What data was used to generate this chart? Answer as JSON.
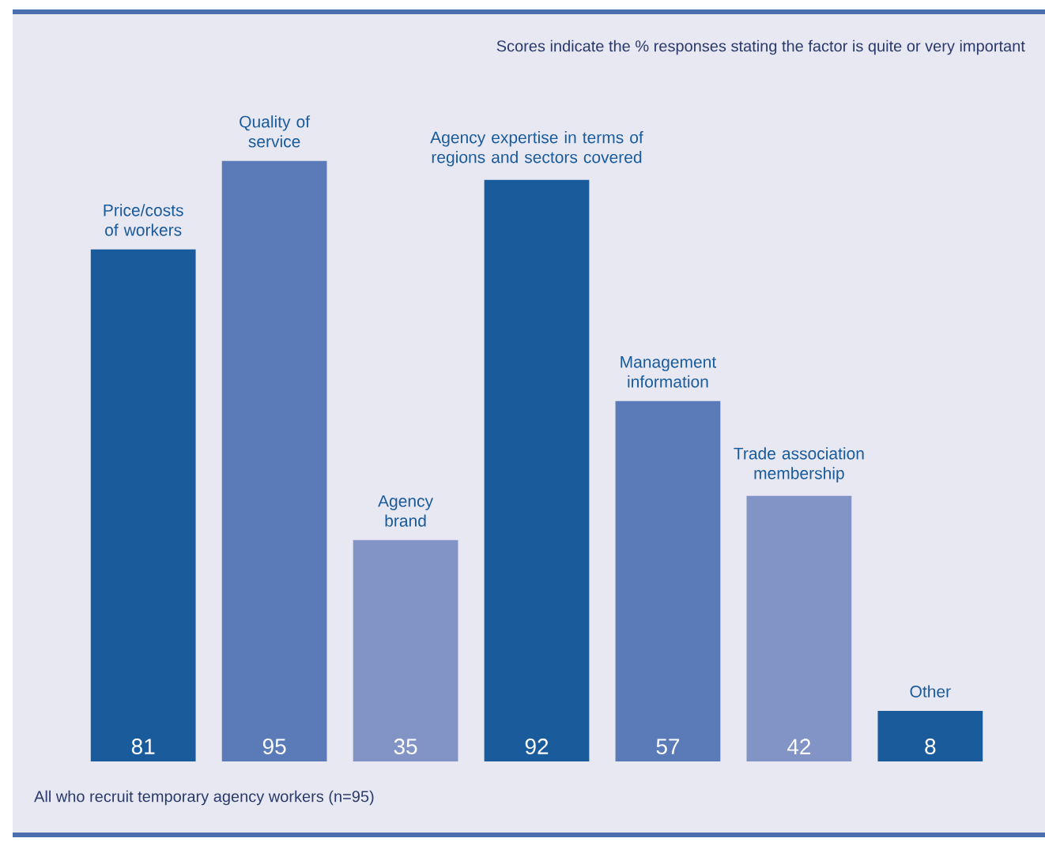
{
  "chart_data": {
    "type": "bar",
    "subtitle": "Scores indicate the % responses stating the factor is quite or very important",
    "annotations": [
      "All who recruit temporary agency workers (n=95)"
    ],
    "categories": [
      "Price/costs of workers",
      "Quality of service",
      "Agency brand",
      "Agency expertise in terms of regions and sectors covered",
      "Management information",
      "Trade association membership",
      "Other"
    ],
    "values": [
      81,
      95,
      35,
      92,
      57,
      42,
      8
    ],
    "colors": [
      "#1a5b9c",
      "#5a7bb8",
      "#8194c5",
      "#1a5b9c",
      "#5a7bb8",
      "#8194c5",
      "#1a5b9c"
    ],
    "data_labels": true
  }
}
